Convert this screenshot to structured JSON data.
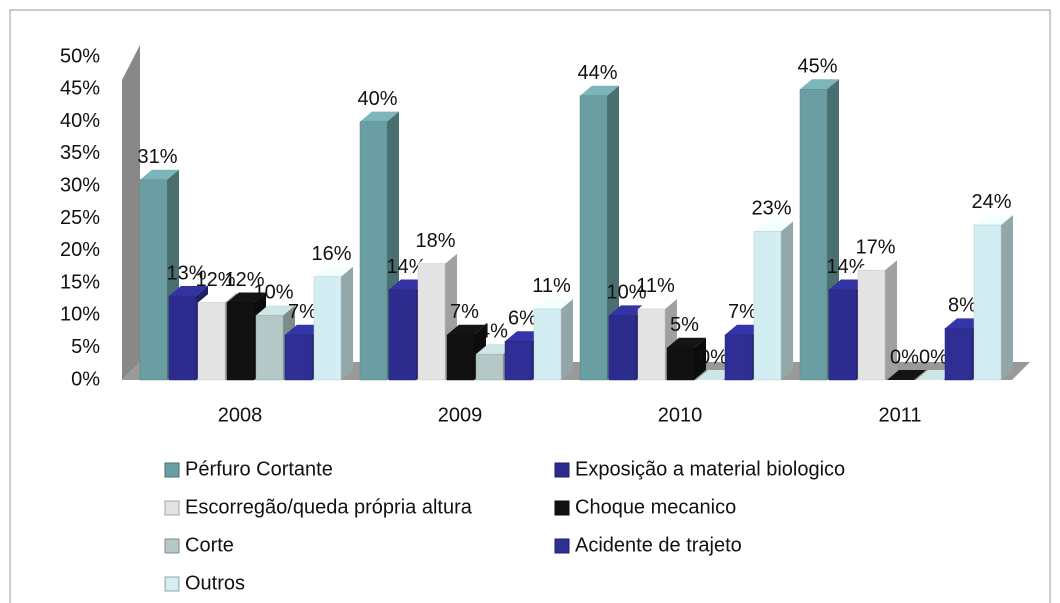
{
  "chart_data": {
    "type": "bar3d",
    "categories": [
      "2008",
      "2009",
      "2010",
      "2011"
    ],
    "series": [
      {
        "name": "Pérfuro Cortante",
        "color": "#6a9ea2",
        "values": [
          31,
          40,
          44,
          45
        ],
        "value_labels": [
          "31%",
          "40%",
          "44%",
          "45%"
        ]
      },
      {
        "name": "Exposição a material biologico",
        "color": "#2c2c8e",
        "values": [
          13,
          14,
          10,
          14
        ],
        "value_labels": [
          "13%",
          "14%",
          "10%",
          "14%"
        ]
      },
      {
        "name": "Escorregão/queda própria altura",
        "color": "#e4e4e4",
        "values": [
          12,
          18,
          11,
          17
        ],
        "value_labels": [
          "12%",
          "18%",
          "11%",
          "17%"
        ]
      },
      {
        "name": "Choque mecanico",
        "color": "#111111",
        "values": [
          12,
          7,
          5,
          0
        ],
        "value_labels": [
          "12%",
          "7%",
          "5%",
          "0%"
        ]
      },
      {
        "name": "Corte",
        "color": "#b4c8c8",
        "values": [
          10,
          4,
          0,
          0
        ],
        "value_labels": [
          "10%",
          "4%",
          "0%",
          "0%"
        ]
      },
      {
        "name": "Acidente de trajeto",
        "color": "#2e2e94",
        "values": [
          7,
          6,
          7,
          8
        ],
        "value_labels": [
          "7%",
          "6%",
          "7%",
          "8%"
        ]
      },
      {
        "name": "Outros",
        "color": "#d2eef2",
        "values": [
          16,
          11,
          23,
          24
        ],
        "value_labels": [
          "16%",
          "11%",
          "23%",
          "24%"
        ]
      }
    ],
    "ylim": [
      0,
      50
    ],
    "yticks": [
      {
        "value": 0,
        "label": "0%"
      },
      {
        "value": 5,
        "label": "5%"
      },
      {
        "value": 10,
        "label": "10%"
      },
      {
        "value": 15,
        "label": "15%"
      },
      {
        "value": 20,
        "label": "20%"
      },
      {
        "value": 25,
        "label": "25%"
      },
      {
        "value": 30,
        "label": "30%"
      },
      {
        "value": 35,
        "label": "35%"
      },
      {
        "value": 40,
        "label": "40%"
      },
      {
        "value": 45,
        "label": "45%"
      },
      {
        "value": 50,
        "label": "50%"
      }
    ],
    "grid": false
  }
}
